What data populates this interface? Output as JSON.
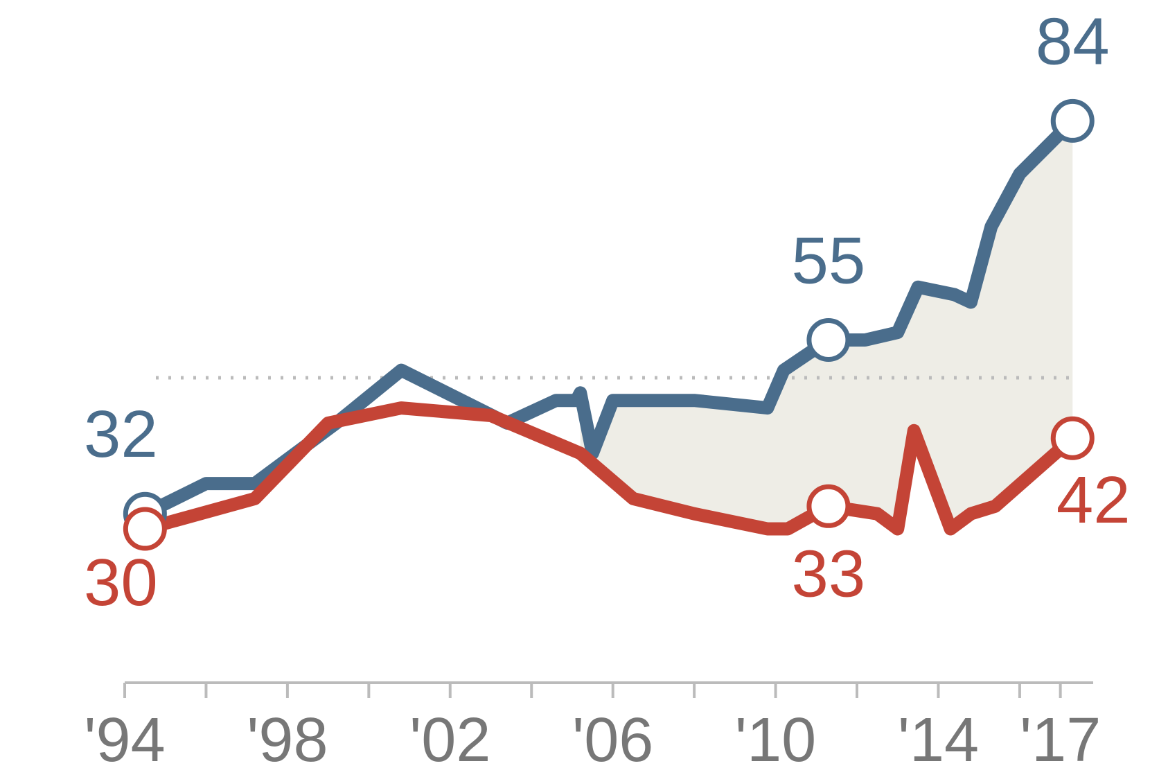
{
  "chart_data": {
    "type": "line",
    "title": "",
    "xlabel": "",
    "ylabel": "",
    "x_tick_labels": [
      {
        "year": 1994,
        "label": "'94"
      },
      {
        "year": 1998,
        "label": "'98"
      },
      {
        "year": 2002,
        "label": "'02"
      },
      {
        "year": 2006,
        "label": "'06"
      },
      {
        "year": 2010,
        "label": "'10"
      },
      {
        "year": 2014,
        "label": "'14"
      },
      {
        "year": 2017,
        "label": "'17"
      }
    ],
    "x_minor_ticks": [
      1994,
      1996,
      1998,
      2000,
      2002,
      2004,
      2006,
      2008,
      2010,
      2012,
      2014,
      2016,
      2017
    ],
    "xlim": [
      1994,
      2017.5
    ],
    "ylim": [
      0,
      100
    ],
    "reference_line": 50,
    "gap_shading": true,
    "series": [
      {
        "color": "#4a6d8c",
        "points": [
          [
            1994.5,
            32
          ],
          [
            1996.0,
            36
          ],
          [
            1997.2,
            36
          ],
          [
            1999.2,
            44
          ],
          [
            2000.8,
            51
          ],
          [
            2003.4,
            44
          ],
          [
            2004.6,
            47
          ],
          [
            2005.1,
            47
          ],
          [
            2005.2,
            48
          ],
          [
            2005.5,
            40
          ],
          [
            2006.0,
            47
          ],
          [
            2008.0,
            47
          ],
          [
            2009.8,
            46
          ],
          [
            2010.2,
            51
          ],
          [
            2011.3,
            55
          ],
          [
            2012.2,
            55
          ],
          [
            2013.0,
            56
          ],
          [
            2013.5,
            62
          ],
          [
            2014.4,
            61
          ],
          [
            2014.8,
            60
          ],
          [
            2015.3,
            70
          ],
          [
            2016.0,
            77
          ],
          [
            2017.3,
            84
          ]
        ],
        "labels": [
          {
            "x": 1994.5,
            "value": 32,
            "text": "32",
            "pos": "above-left"
          },
          {
            "x": 2011.3,
            "value": 55,
            "text": "55",
            "pos": "above"
          },
          {
            "x": 2017.3,
            "value": 84,
            "text": "84",
            "pos": "above"
          }
        ]
      },
      {
        "color": "#c44436",
        "points": [
          [
            1994.5,
            30
          ],
          [
            1997.2,
            34
          ],
          [
            1999.0,
            44
          ],
          [
            2000.8,
            46
          ],
          [
            2003.0,
            45
          ],
          [
            2005.2,
            40
          ],
          [
            2006.5,
            34
          ],
          [
            2008.0,
            32
          ],
          [
            2009.8,
            30
          ],
          [
            2010.3,
            30
          ],
          [
            2011.3,
            33
          ],
          [
            2012.5,
            32
          ],
          [
            2013.0,
            30
          ],
          [
            2013.4,
            43
          ],
          [
            2014.3,
            30
          ],
          [
            2014.8,
            32
          ],
          [
            2015.4,
            33
          ],
          [
            2017.3,
            42
          ]
        ],
        "labels": [
          {
            "x": 1994.5,
            "value": 30,
            "text": "30",
            "pos": "below-left"
          },
          {
            "x": 2011.3,
            "value": 33,
            "text": "33",
            "pos": "below"
          },
          {
            "x": 2017.3,
            "value": 42,
            "text": "42",
            "pos": "below-right"
          }
        ]
      }
    ]
  }
}
